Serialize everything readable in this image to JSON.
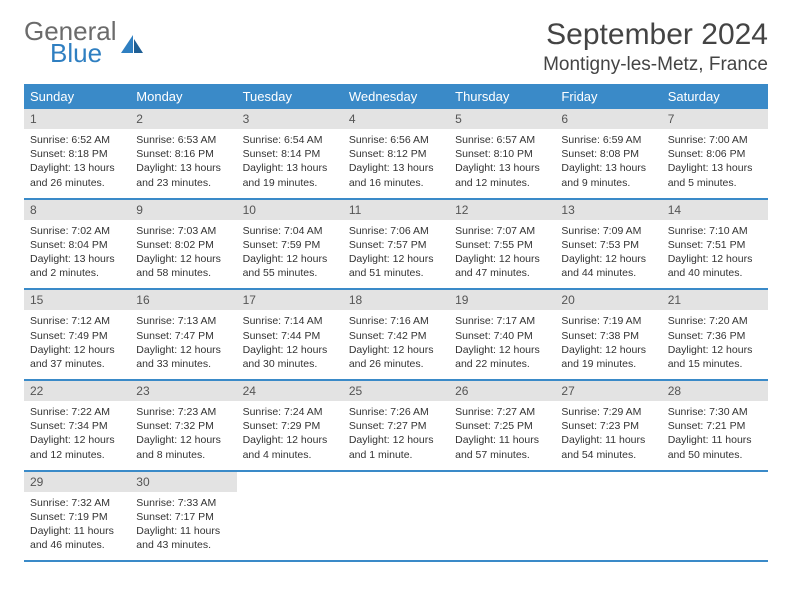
{
  "brand": {
    "word1": "General",
    "word2": "Blue"
  },
  "title": "September 2024",
  "location": "Montigny-les-Metz, France",
  "colors": {
    "header_bg": "#3a8ac8",
    "header_text": "#ffffff",
    "daynum_bg": "#e3e3e3",
    "border": "#3a8ac8",
    "brand_gray": "#6b6b6b",
    "brand_blue": "#2f7fc1"
  },
  "day_names": [
    "Sunday",
    "Monday",
    "Tuesday",
    "Wednesday",
    "Thursday",
    "Friday",
    "Saturday"
  ],
  "weeks": [
    [
      {
        "n": "1",
        "sr": "Sunrise: 6:52 AM",
        "ss": "Sunset: 8:18 PM",
        "d1": "Daylight: 13 hours",
        "d2": "and 26 minutes."
      },
      {
        "n": "2",
        "sr": "Sunrise: 6:53 AM",
        "ss": "Sunset: 8:16 PM",
        "d1": "Daylight: 13 hours",
        "d2": "and 23 minutes."
      },
      {
        "n": "3",
        "sr": "Sunrise: 6:54 AM",
        "ss": "Sunset: 8:14 PM",
        "d1": "Daylight: 13 hours",
        "d2": "and 19 minutes."
      },
      {
        "n": "4",
        "sr": "Sunrise: 6:56 AM",
        "ss": "Sunset: 8:12 PM",
        "d1": "Daylight: 13 hours",
        "d2": "and 16 minutes."
      },
      {
        "n": "5",
        "sr": "Sunrise: 6:57 AM",
        "ss": "Sunset: 8:10 PM",
        "d1": "Daylight: 13 hours",
        "d2": "and 12 minutes."
      },
      {
        "n": "6",
        "sr": "Sunrise: 6:59 AM",
        "ss": "Sunset: 8:08 PM",
        "d1": "Daylight: 13 hours",
        "d2": "and 9 minutes."
      },
      {
        "n": "7",
        "sr": "Sunrise: 7:00 AM",
        "ss": "Sunset: 8:06 PM",
        "d1": "Daylight: 13 hours",
        "d2": "and 5 minutes."
      }
    ],
    [
      {
        "n": "8",
        "sr": "Sunrise: 7:02 AM",
        "ss": "Sunset: 8:04 PM",
        "d1": "Daylight: 13 hours",
        "d2": "and 2 minutes."
      },
      {
        "n": "9",
        "sr": "Sunrise: 7:03 AM",
        "ss": "Sunset: 8:02 PM",
        "d1": "Daylight: 12 hours",
        "d2": "and 58 minutes."
      },
      {
        "n": "10",
        "sr": "Sunrise: 7:04 AM",
        "ss": "Sunset: 7:59 PM",
        "d1": "Daylight: 12 hours",
        "d2": "and 55 minutes."
      },
      {
        "n": "11",
        "sr": "Sunrise: 7:06 AM",
        "ss": "Sunset: 7:57 PM",
        "d1": "Daylight: 12 hours",
        "d2": "and 51 minutes."
      },
      {
        "n": "12",
        "sr": "Sunrise: 7:07 AM",
        "ss": "Sunset: 7:55 PM",
        "d1": "Daylight: 12 hours",
        "d2": "and 47 minutes."
      },
      {
        "n": "13",
        "sr": "Sunrise: 7:09 AM",
        "ss": "Sunset: 7:53 PM",
        "d1": "Daylight: 12 hours",
        "d2": "and 44 minutes."
      },
      {
        "n": "14",
        "sr": "Sunrise: 7:10 AM",
        "ss": "Sunset: 7:51 PM",
        "d1": "Daylight: 12 hours",
        "d2": "and 40 minutes."
      }
    ],
    [
      {
        "n": "15",
        "sr": "Sunrise: 7:12 AM",
        "ss": "Sunset: 7:49 PM",
        "d1": "Daylight: 12 hours",
        "d2": "and 37 minutes."
      },
      {
        "n": "16",
        "sr": "Sunrise: 7:13 AM",
        "ss": "Sunset: 7:47 PM",
        "d1": "Daylight: 12 hours",
        "d2": "and 33 minutes."
      },
      {
        "n": "17",
        "sr": "Sunrise: 7:14 AM",
        "ss": "Sunset: 7:44 PM",
        "d1": "Daylight: 12 hours",
        "d2": "and 30 minutes."
      },
      {
        "n": "18",
        "sr": "Sunrise: 7:16 AM",
        "ss": "Sunset: 7:42 PM",
        "d1": "Daylight: 12 hours",
        "d2": "and 26 minutes."
      },
      {
        "n": "19",
        "sr": "Sunrise: 7:17 AM",
        "ss": "Sunset: 7:40 PM",
        "d1": "Daylight: 12 hours",
        "d2": "and 22 minutes."
      },
      {
        "n": "20",
        "sr": "Sunrise: 7:19 AM",
        "ss": "Sunset: 7:38 PM",
        "d1": "Daylight: 12 hours",
        "d2": "and 19 minutes."
      },
      {
        "n": "21",
        "sr": "Sunrise: 7:20 AM",
        "ss": "Sunset: 7:36 PM",
        "d1": "Daylight: 12 hours",
        "d2": "and 15 minutes."
      }
    ],
    [
      {
        "n": "22",
        "sr": "Sunrise: 7:22 AM",
        "ss": "Sunset: 7:34 PM",
        "d1": "Daylight: 12 hours",
        "d2": "and 12 minutes."
      },
      {
        "n": "23",
        "sr": "Sunrise: 7:23 AM",
        "ss": "Sunset: 7:32 PM",
        "d1": "Daylight: 12 hours",
        "d2": "and 8 minutes."
      },
      {
        "n": "24",
        "sr": "Sunrise: 7:24 AM",
        "ss": "Sunset: 7:29 PM",
        "d1": "Daylight: 12 hours",
        "d2": "and 4 minutes."
      },
      {
        "n": "25",
        "sr": "Sunrise: 7:26 AM",
        "ss": "Sunset: 7:27 PM",
        "d1": "Daylight: 12 hours",
        "d2": "and 1 minute."
      },
      {
        "n": "26",
        "sr": "Sunrise: 7:27 AM",
        "ss": "Sunset: 7:25 PM",
        "d1": "Daylight: 11 hours",
        "d2": "and 57 minutes."
      },
      {
        "n": "27",
        "sr": "Sunrise: 7:29 AM",
        "ss": "Sunset: 7:23 PM",
        "d1": "Daylight: 11 hours",
        "d2": "and 54 minutes."
      },
      {
        "n": "28",
        "sr": "Sunrise: 7:30 AM",
        "ss": "Sunset: 7:21 PM",
        "d1": "Daylight: 11 hours",
        "d2": "and 50 minutes."
      }
    ],
    [
      {
        "n": "29",
        "sr": "Sunrise: 7:32 AM",
        "ss": "Sunset: 7:19 PM",
        "d1": "Daylight: 11 hours",
        "d2": "and 46 minutes."
      },
      {
        "n": "30",
        "sr": "Sunrise: 7:33 AM",
        "ss": "Sunset: 7:17 PM",
        "d1": "Daylight: 11 hours",
        "d2": "and 43 minutes."
      },
      null,
      null,
      null,
      null,
      null
    ]
  ]
}
